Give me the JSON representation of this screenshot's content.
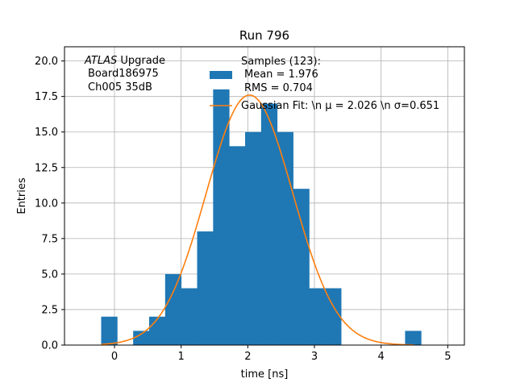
{
  "chart_data": {
    "type": "bar",
    "title": "Run 796",
    "xlabel": "time [ns]",
    "ylabel": "Entries",
    "xlim": [
      -0.75,
      5.25
    ],
    "ylim": [
      0,
      21
    ],
    "grid": true,
    "x_ticks": [
      0,
      1,
      2,
      3,
      4,
      5
    ],
    "x_tick_labels": [
      "0",
      "1",
      "2",
      "3",
      "4",
      "5"
    ],
    "y_ticks": [
      0,
      2.5,
      5,
      7.5,
      10,
      12.5,
      15,
      17.5,
      20
    ],
    "y_tick_labels": [
      "0.0",
      "2.5",
      "5.0",
      "7.5",
      "10.0",
      "12.5",
      "15.0",
      "17.5",
      "20.0"
    ],
    "bin_width": 0.24,
    "bins": [
      {
        "x0": -0.2,
        "value": 2
      },
      {
        "x0": 0.04,
        "value": 0
      },
      {
        "x0": 0.28,
        "value": 1
      },
      {
        "x0": 0.52,
        "value": 2
      },
      {
        "x0": 0.76,
        "value": 5
      },
      {
        "x0": 1.0,
        "value": 4
      },
      {
        "x0": 1.24,
        "value": 8
      },
      {
        "x0": 1.48,
        "value": 18
      },
      {
        "x0": 1.72,
        "value": 14
      },
      {
        "x0": 1.96,
        "value": 15
      },
      {
        "x0": 2.2,
        "value": 17
      },
      {
        "x0": 2.44,
        "value": 15
      },
      {
        "x0": 2.68,
        "value": 11
      },
      {
        "x0": 2.92,
        "value": 4
      },
      {
        "x0": 3.16,
        "value": 4
      },
      {
        "x0": 3.4,
        "value": 0
      },
      {
        "x0": 3.64,
        "value": 0
      },
      {
        "x0": 3.88,
        "value": 0
      },
      {
        "x0": 4.12,
        "value": 0
      },
      {
        "x0": 4.36,
        "value": 1
      }
    ],
    "gaussian_fit": {
      "amplitude": 17.6,
      "mu": 2.026,
      "sigma": 0.651,
      "x_range": [
        -0.2,
        4.5
      ]
    },
    "annotation_lines": [
      "ATLAS Upgrade",
      "Board186975",
      "Ch005 35dB"
    ],
    "annotation_italic_word": "ATLAS",
    "legend": {
      "placement": "top-right",
      "samples_lines": [
        "Samples (123):",
        "Mean = 1.976",
        "RMS = 0.704"
      ],
      "fit_label": "Gaussian Fit: \\n μ = 2.026 \\n σ=0.651"
    },
    "colors": {
      "bars": "#1f77b4",
      "fit": "#ff7f0e"
    }
  }
}
